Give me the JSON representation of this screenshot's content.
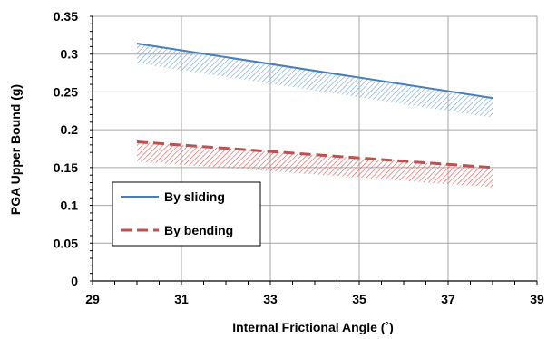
{
  "chart_data": {
    "type": "line",
    "title": "",
    "xlabel": "Internal Frictional Angle (˚)",
    "ylabel": "PGA Upper Bound (g)",
    "xlim": [
      29,
      39
    ],
    "ylim": [
      0,
      0.35
    ],
    "x_ticks": [
      "29",
      "31",
      "33",
      "35",
      "37",
      "39"
    ],
    "y_ticks": [
      "0",
      "0.05",
      "0.1",
      "0.15",
      "0.2",
      "0.25",
      "0.3",
      "0.35"
    ],
    "grid": true,
    "legend_position": "bottom-left",
    "series": [
      {
        "name": "By sliding",
        "style": "solid",
        "color": "#4a7ebb",
        "band_color": "#6fa0d8",
        "x": [
          30,
          38
        ],
        "y": [
          0.314,
          0.242
        ],
        "band_lower": [
          0.288,
          0.216
        ]
      },
      {
        "name": "By bending",
        "style": "dashed",
        "color": "#c0504d",
        "band_color": "#e05555",
        "x": [
          30,
          38
        ],
        "y": [
          0.184,
          0.15
        ],
        "band_lower": [
          0.158,
          0.124
        ]
      }
    ]
  }
}
